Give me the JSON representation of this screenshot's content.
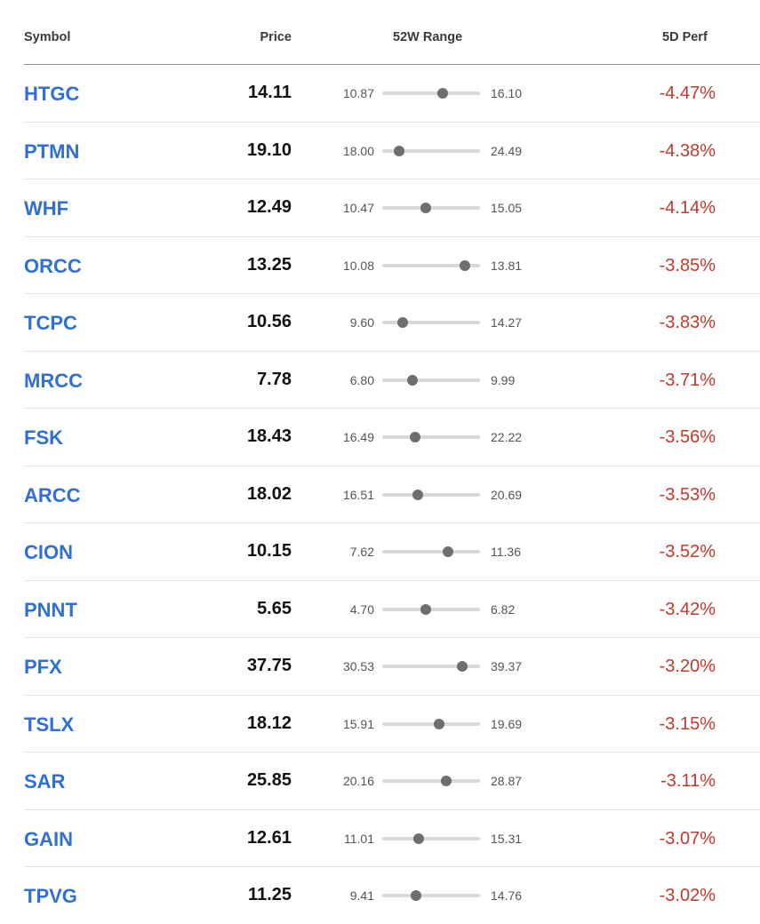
{
  "header": {
    "symbol": "Symbol",
    "price": "Price",
    "range": "52W Range",
    "perf": "5D Perf"
  },
  "colors": {
    "symbol": "#2f6fd6",
    "negative": "#c0392b",
    "track": "#d9d9d9",
    "dot": "#6e6e6e"
  },
  "rows": [
    {
      "symbol": "HTGC",
      "price": "14.11",
      "low": "10.87",
      "high": "16.10",
      "perf": "-4.47%"
    },
    {
      "symbol": "PTMN",
      "price": "19.10",
      "low": "18.00",
      "high": "24.49",
      "perf": "-4.38%"
    },
    {
      "symbol": "WHF",
      "price": "12.49",
      "low": "10.47",
      "high": "15.05",
      "perf": "-4.14%"
    },
    {
      "symbol": "ORCC",
      "price": "13.25",
      "low": "10.08",
      "high": "13.81",
      "perf": "-3.85%"
    },
    {
      "symbol": "TCPC",
      "price": "10.56",
      "low": "9.60",
      "high": "14.27",
      "perf": "-3.83%"
    },
    {
      "symbol": "MRCC",
      "price": "7.78",
      "low": "6.80",
      "high": "9.99",
      "perf": "-3.71%"
    },
    {
      "symbol": "FSK",
      "price": "18.43",
      "low": "16.49",
      "high": "22.22",
      "perf": "-3.56%"
    },
    {
      "symbol": "ARCC",
      "price": "18.02",
      "low": "16.51",
      "high": "20.69",
      "perf": "-3.53%"
    },
    {
      "symbol": "CION",
      "price": "10.15",
      "low": "7.62",
      "high": "11.36",
      "perf": "-3.52%"
    },
    {
      "symbol": "PNNT",
      "price": "5.65",
      "low": "4.70",
      "high": "6.82",
      "perf": "-3.42%"
    },
    {
      "symbol": "PFX",
      "price": "37.75",
      "low": "30.53",
      "high": "39.37",
      "perf": "-3.20%"
    },
    {
      "symbol": "TSLX",
      "price": "18.12",
      "low": "15.91",
      "high": "19.69",
      "perf": "-3.15%"
    },
    {
      "symbol": "SAR",
      "price": "25.85",
      "low": "20.16",
      "high": "28.87",
      "perf": "-3.11%"
    },
    {
      "symbol": "GAIN",
      "price": "12.61",
      "low": "11.01",
      "high": "15.31",
      "perf": "-3.07%"
    },
    {
      "symbol": "TPVG",
      "price": "11.25",
      "low": "9.41",
      "high": "14.76",
      "perf": "-3.02%"
    }
  ]
}
